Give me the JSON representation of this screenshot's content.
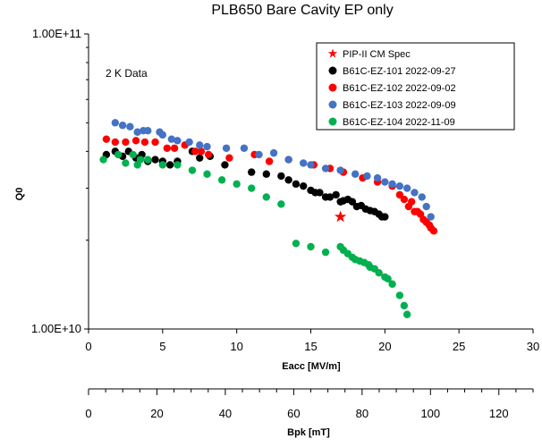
{
  "chart_data": {
    "type": "scatter",
    "title": "PLB650 Bare Cavity EP only",
    "xlabel": "Eacc [MV/m]",
    "ylabel": "Q0",
    "xlim": [
      0,
      30
    ],
    "ylim": [
      10000000000.0,
      100000000000.0
    ],
    "y_scale": "log",
    "grid": false,
    "legend_position": "top-right",
    "x_ticks": [
      "0",
      "5",
      "10",
      "15",
      "20",
      "25",
      "30"
    ],
    "y_ticks": [
      "1.00E+10",
      "1.00E+11"
    ],
    "annotation": "2 K Data",
    "secondary_axis": {
      "label": "Bpk [mT]",
      "lim": [
        0,
        130
      ],
      "ticks": [
        "0",
        "20",
        "40",
        "60",
        "80",
        "100",
        "120"
      ],
      "major_step": 20,
      "minor_step": 5
    },
    "series": [
      {
        "name": "PIP-II CM Spec",
        "color": "#ff0000",
        "marker": "star",
        "points": [
          [
            17,
            24000000000.0
          ]
        ]
      },
      {
        "name": "B61C-EZ-101 2022-09-27",
        "color": "#000000",
        "marker": "circle",
        "points": [
          [
            1.2,
            39000000000.0
          ],
          [
            1.8,
            40000000000.0
          ],
          [
            2.3,
            38500000000.0
          ],
          [
            2.7,
            40000000000.0
          ],
          [
            3.2,
            38000000000.0
          ],
          [
            3.6,
            39000000000.0
          ],
          [
            4.0,
            37000000000.0
          ],
          [
            4.5,
            37500000000.0
          ],
          [
            5.0,
            37000000000.0
          ],
          [
            5.5,
            36000000000.0
          ],
          [
            6.0,
            37000000000.0
          ],
          [
            7.0,
            40000000000.0
          ],
          [
            7.5,
            38000000000.0
          ],
          [
            8.2,
            38500000000.0
          ],
          [
            9.2,
            36000000000.0
          ],
          [
            11.0,
            34000000000.0
          ],
          [
            12.0,
            33500000000.0
          ],
          [
            13.0,
            33000000000.0
          ],
          [
            13.5,
            32000000000.0
          ],
          [
            14.0,
            31000000000.0
          ],
          [
            14.5,
            30500000000.0
          ],
          [
            15.0,
            29500000000.0
          ],
          [
            15.3,
            29000000000.0
          ],
          [
            15.6,
            29000000000.0
          ],
          [
            16.0,
            28000000000.0
          ],
          [
            16.3,
            28000000000.0
          ],
          [
            16.7,
            28500000000.0
          ],
          [
            17.0,
            27000000000.0
          ],
          [
            17.2,
            27200000000.0
          ],
          [
            17.5,
            27500000000.0
          ],
          [
            17.8,
            27000000000.0
          ],
          [
            18.1,
            26000000000.0
          ],
          [
            18.4,
            26200000000.0
          ],
          [
            18.7,
            25500000000.0
          ],
          [
            19.0,
            25200000000.0
          ],
          [
            19.3,
            25000000000.0
          ],
          [
            19.6,
            24500000000.0
          ],
          [
            19.8,
            24000000000.0
          ],
          [
            20.0,
            24000000000.0
          ]
        ]
      },
      {
        "name": "B61C-EZ-102 2022-09-02",
        "color": "#ff0000",
        "marker": "circle",
        "points": [
          [
            1.2,
            44000000000.0
          ],
          [
            1.8,
            43000000000.0
          ],
          [
            2.5,
            43000000000.0
          ],
          [
            3.2,
            43500000000.0
          ],
          [
            3.8,
            43000000000.0
          ],
          [
            4.5,
            43000000000.0
          ],
          [
            5.3,
            41000000000.0
          ],
          [
            5.8,
            41000000000.0
          ],
          [
            6.5,
            42000000000.0
          ],
          [
            7.2,
            40000000000.0
          ],
          [
            7.6,
            40000000000.0
          ],
          [
            8.1,
            39000000000.0
          ],
          [
            9.5,
            38000000000.0
          ],
          [
            11.2,
            39000000000.0
          ],
          [
            12.2,
            37000000000.0
          ],
          [
            13.5,
            37500000000.0
          ],
          [
            15.2,
            36000000000.0
          ],
          [
            16.3,
            35000000000.0
          ],
          [
            17.2,
            34000000000.0
          ],
          [
            18.5,
            32500000000.0
          ],
          [
            19.5,
            31500000000.0
          ],
          [
            20.5,
            30500000000.0
          ],
          [
            21.0,
            28500000000.0
          ],
          [
            21.3,
            27500000000.0
          ],
          [
            21.6,
            26000000000.0
          ],
          [
            21.8,
            27000000000.0
          ],
          [
            22.0,
            25000000000.0
          ],
          [
            22.2,
            25000000000.0
          ],
          [
            22.4,
            24500000000.0
          ],
          [
            22.6,
            23500000000.0
          ],
          [
            22.8,
            23000000000.0
          ],
          [
            23.0,
            22500000000.0
          ],
          [
            23.1,
            22000000000.0
          ],
          [
            23.3,
            21500000000.0
          ]
        ]
      },
      {
        "name": "B61C-EZ-103 2022-09-09",
        "color": "#4472c4",
        "marker": "circle",
        "points": [
          [
            1.8,
            50000000000.0
          ],
          [
            2.3,
            49000000000.0
          ],
          [
            2.8,
            48500000000.0
          ],
          [
            3.3,
            46500000000.0
          ],
          [
            3.7,
            47000000000.0
          ],
          [
            4.0,
            47000000000.0
          ],
          [
            4.8,
            46500000000.0
          ],
          [
            5.0,
            45500000000.0
          ],
          [
            5.6,
            44000000000.0
          ],
          [
            6.0,
            43500000000.0
          ],
          [
            6.8,
            43000000000.0
          ],
          [
            7.5,
            42000000000.0
          ],
          [
            8.0,
            41500000000.0
          ],
          [
            9.3,
            41000000000.0
          ],
          [
            10.5,
            41000000000.0
          ],
          [
            11.5,
            39000000000.0
          ],
          [
            12.5,
            39500000000.0
          ],
          [
            13.5,
            37500000000.0
          ],
          [
            14.5,
            36500000000.0
          ],
          [
            15.0,
            36000000000.0
          ],
          [
            16.0,
            35000000000.0
          ],
          [
            17.0,
            34500000000.0
          ],
          [
            18.0,
            33500000000.0
          ],
          [
            18.8,
            33000000000.0
          ],
          [
            19.5,
            32500000000.0
          ],
          [
            20.0,
            31500000000.0
          ],
          [
            20.5,
            31000000000.0
          ],
          [
            21.0,
            30500000000.0
          ],
          [
            21.5,
            30000000000.0
          ],
          [
            22.0,
            29000000000.0
          ],
          [
            22.5,
            28000000000.0
          ],
          [
            22.8,
            26000000000.0
          ],
          [
            23.1,
            24000000000.0
          ]
        ]
      },
      {
        "name": "B61C-EZ-104 2022-11-09",
        "color": "#00b050",
        "marker": "circle",
        "points": [
          [
            1.0,
            37500000000.0
          ],
          [
            2.0,
            39000000000.0
          ],
          [
            2.5,
            36500000000.0
          ],
          [
            3.0,
            39000000000.0
          ],
          [
            3.3,
            36000000000.0
          ],
          [
            3.5,
            37500000000.0
          ],
          [
            4.0,
            37500000000.0
          ],
          [
            5.0,
            36000000000.0
          ],
          [
            6.0,
            36000000000.0
          ],
          [
            7.0,
            34500000000.0
          ],
          [
            8.0,
            33500000000.0
          ],
          [
            9.0,
            32000000000.0
          ],
          [
            10.0,
            31000000000.0
          ],
          [
            11.0,
            30000000000.0
          ],
          [
            12.0,
            28000000000.0
          ],
          [
            13.0,
            26500000000.0
          ],
          [
            14.0,
            19500000000.0
          ],
          [
            15.0,
            19000000000.0
          ],
          [
            16.0,
            18200000000.0
          ],
          [
            17.0,
            19000000000.0
          ],
          [
            17.2,
            18500000000.0
          ],
          [
            17.5,
            18000000000.0
          ],
          [
            17.8,
            17500000000.0
          ],
          [
            18.0,
            17200000000.0
          ],
          [
            18.3,
            17000000000.0
          ],
          [
            18.6,
            16800000000.0
          ],
          [
            18.9,
            16500000000.0
          ],
          [
            19.0,
            16200000000.0
          ],
          [
            19.3,
            16000000000.0
          ],
          [
            19.6,
            15500000000.0
          ],
          [
            20.0,
            15000000000.0
          ],
          [
            20.2,
            14800000000.0
          ],
          [
            20.5,
            14200000000.0
          ],
          [
            21.0,
            13000000000.0
          ],
          [
            21.3,
            12000000000.0
          ],
          [
            21.5,
            11200000000.0
          ]
        ]
      }
    ]
  }
}
